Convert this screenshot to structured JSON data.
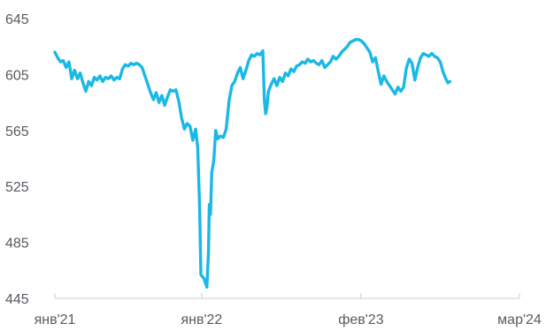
{
  "chart_data": {
    "type": "line",
    "title": "",
    "xlabel": "",
    "ylabel": "",
    "ylim": [
      445,
      645
    ],
    "yticks": [
      645,
      605,
      565,
      525,
      485,
      445
    ],
    "xlim": [
      "2021-01-01",
      "2024-03-01"
    ],
    "xticks": [
      {
        "date": "2021-01-01",
        "label": "янв'21"
      },
      {
        "date": "2022-01-01",
        "label": "янв'22"
      },
      {
        "date": "2023-02-01",
        "label": "фев'23"
      },
      {
        "date": "2024-03-01",
        "label": "мар'24"
      }
    ],
    "grid": false,
    "line_color": "#1ab8e6",
    "axis_color": "#c8cdd2",
    "series": [
      {
        "points": [
          [
            "2021-01-01",
            621
          ],
          [
            "2021-01-08",
            617
          ],
          [
            "2021-01-15",
            614
          ],
          [
            "2021-01-22",
            615
          ],
          [
            "2021-01-29",
            610
          ],
          [
            "2021-02-05",
            614
          ],
          [
            "2021-02-12",
            602
          ],
          [
            "2021-02-19",
            608
          ],
          [
            "2021-02-26",
            602
          ],
          [
            "2021-03-05",
            606
          ],
          [
            "2021-03-12",
            599
          ],
          [
            "2021-03-19",
            593
          ],
          [
            "2021-03-26",
            600
          ],
          [
            "2021-04-02",
            597
          ],
          [
            "2021-04-09",
            603
          ],
          [
            "2021-04-16",
            601
          ],
          [
            "2021-04-23",
            604
          ],
          [
            "2021-04-30",
            600
          ],
          [
            "2021-05-07",
            603
          ],
          [
            "2021-05-14",
            602
          ],
          [
            "2021-05-21",
            604
          ],
          [
            "2021-05-28",
            601
          ],
          [
            "2021-06-04",
            603
          ],
          [
            "2021-06-11",
            602
          ],
          [
            "2021-06-18",
            609
          ],
          [
            "2021-06-25",
            612
          ],
          [
            "2021-07-02",
            611
          ],
          [
            "2021-07-09",
            613
          ],
          [
            "2021-07-16",
            612
          ],
          [
            "2021-07-23",
            613
          ],
          [
            "2021-07-30",
            612
          ],
          [
            "2021-08-06",
            610
          ],
          [
            "2021-08-13",
            604
          ],
          [
            "2021-08-20",
            598
          ],
          [
            "2021-08-27",
            592
          ],
          [
            "2021-09-03",
            587
          ],
          [
            "2021-09-10",
            592
          ],
          [
            "2021-09-17",
            585
          ],
          [
            "2021-09-24",
            590
          ],
          [
            "2021-10-01",
            583
          ],
          [
            "2021-10-08",
            589
          ],
          [
            "2021-10-15",
            594
          ],
          [
            "2021-10-22",
            593
          ],
          [
            "2021-10-29",
            594
          ],
          [
            "2021-11-05",
            586
          ],
          [
            "2021-11-12",
            574
          ],
          [
            "2021-11-19",
            566
          ],
          [
            "2021-11-26",
            570
          ],
          [
            "2021-12-03",
            568
          ],
          [
            "2021-12-10",
            558
          ],
          [
            "2021-12-17",
            566
          ],
          [
            "2021-12-22",
            553
          ],
          [
            "2021-12-27",
            510
          ],
          [
            "2021-12-30",
            462
          ],
          [
            "2022-01-07",
            459
          ],
          [
            "2022-01-14",
            453
          ],
          [
            "2022-01-18",
            478
          ],
          [
            "2022-01-20",
            512
          ],
          [
            "2022-01-23",
            505
          ],
          [
            "2022-01-26",
            535
          ],
          [
            "2022-01-31",
            543
          ],
          [
            "2022-02-05",
            565
          ],
          [
            "2022-02-10",
            559
          ],
          [
            "2022-02-17",
            561
          ],
          [
            "2022-02-24",
            560
          ],
          [
            "2022-03-03",
            566
          ],
          [
            "2022-03-10",
            586
          ],
          [
            "2022-03-17",
            597
          ],
          [
            "2022-03-24",
            600
          ],
          [
            "2022-03-31",
            606
          ],
          [
            "2022-04-07",
            610
          ],
          [
            "2022-04-14",
            602
          ],
          [
            "2022-04-21",
            608
          ],
          [
            "2022-04-28",
            615
          ],
          [
            "2022-05-05",
            619
          ],
          [
            "2022-05-12",
            618
          ],
          [
            "2022-05-19",
            620
          ],
          [
            "2022-05-26",
            619
          ],
          [
            "2022-06-02",
            622
          ],
          [
            "2022-06-06",
            586
          ],
          [
            "2022-06-09",
            577
          ],
          [
            "2022-06-12",
            581
          ],
          [
            "2022-06-16",
            593
          ],
          [
            "2022-06-23",
            598
          ],
          [
            "2022-06-30",
            602
          ],
          [
            "2022-07-07",
            597
          ],
          [
            "2022-07-14",
            603
          ],
          [
            "2022-07-21",
            600
          ],
          [
            "2022-07-28",
            606
          ],
          [
            "2022-08-04",
            604
          ],
          [
            "2022-08-11",
            609
          ],
          [
            "2022-08-18",
            607
          ],
          [
            "2022-08-25",
            611
          ],
          [
            "2022-09-01",
            612
          ],
          [
            "2022-09-08",
            614
          ],
          [
            "2022-09-15",
            613
          ],
          [
            "2022-09-22",
            616
          ],
          [
            "2022-09-29",
            614
          ],
          [
            "2022-10-06",
            615
          ],
          [
            "2022-10-13",
            613
          ],
          [
            "2022-10-20",
            612
          ],
          [
            "2022-10-27",
            615
          ],
          [
            "2022-11-03",
            610
          ],
          [
            "2022-11-10",
            612
          ],
          [
            "2022-11-17",
            614
          ],
          [
            "2022-11-24",
            618
          ],
          [
            "2022-12-01",
            616
          ],
          [
            "2022-12-08",
            618
          ],
          [
            "2022-12-15",
            621
          ],
          [
            "2022-12-22",
            623
          ],
          [
            "2022-12-29",
            625
          ],
          [
            "2023-01-05",
            628
          ],
          [
            "2023-01-12",
            629
          ],
          [
            "2023-01-19",
            630
          ],
          [
            "2023-01-26",
            630
          ],
          [
            "2023-02-02",
            629
          ],
          [
            "2023-02-09",
            627
          ],
          [
            "2023-02-16",
            624
          ],
          [
            "2023-02-23",
            621
          ],
          [
            "2023-03-02",
            614
          ],
          [
            "2023-03-09",
            617
          ],
          [
            "2023-03-16",
            607
          ],
          [
            "2023-03-23",
            598
          ],
          [
            "2023-03-30",
            604
          ],
          [
            "2023-04-06",
            600
          ],
          [
            "2023-04-13",
            597
          ],
          [
            "2023-04-20",
            594
          ],
          [
            "2023-04-27",
            591
          ],
          [
            "2023-05-04",
            596
          ],
          [
            "2023-05-11",
            593
          ],
          [
            "2023-05-18",
            596
          ],
          [
            "2023-05-25",
            610
          ],
          [
            "2023-06-01",
            616
          ],
          [
            "2023-06-08",
            613
          ],
          [
            "2023-06-15",
            601
          ],
          [
            "2023-06-22",
            610
          ],
          [
            "2023-06-29",
            617
          ],
          [
            "2023-07-06",
            620
          ],
          [
            "2023-07-13",
            619
          ],
          [
            "2023-07-20",
            618
          ],
          [
            "2023-07-27",
            620
          ],
          [
            "2023-08-03",
            618
          ],
          [
            "2023-08-10",
            617
          ],
          [
            "2023-08-17",
            614
          ],
          [
            "2023-08-24",
            607
          ],
          [
            "2023-08-31",
            602
          ],
          [
            "2023-09-05",
            599
          ],
          [
            "2023-09-10",
            600
          ]
        ]
      }
    ]
  }
}
